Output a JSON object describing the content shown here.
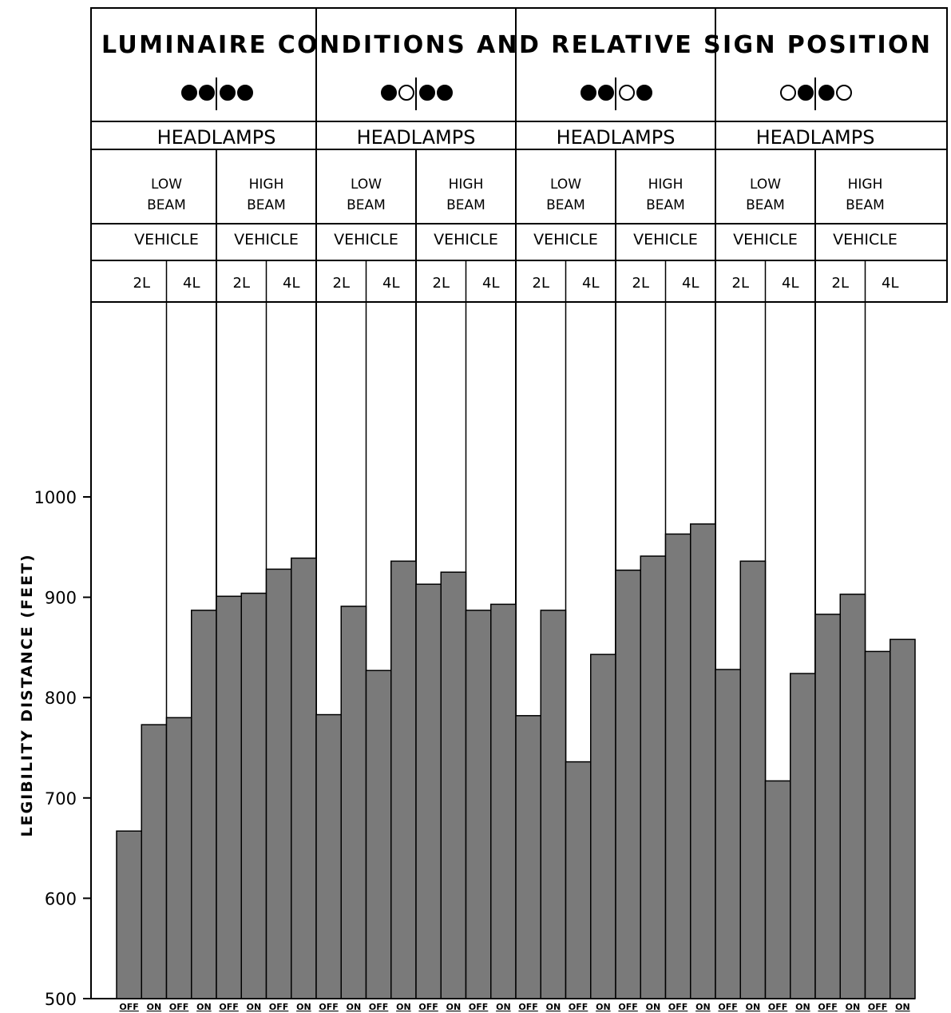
{
  "chart_data": {
    "type": "bar",
    "title": "LUMINAIRE CONDITIONS AND RELATIVE SIGN POSITION",
    "ylabel": "LEGIBILITY DISTANCE (FEET)",
    "xlabel": "",
    "ylim": [
      500,
      1100
    ],
    "yticks": [
      "500",
      "600",
      "700",
      "800",
      "900",
      "1000"
    ],
    "grid": false,
    "legend": "none",
    "bar_color": "#7a7a7a",
    "groups": [
      {
        "luminaire_condition": {
          "left": [
            "filled",
            "filled"
          ],
          "right": [
            "filled",
            "filled"
          ]
        },
        "headlamps_label": "HEADLAMPS",
        "beams": [
          {
            "line1": "LOW",
            "line2": "BEAM",
            "vehicle_label": "VEHICLE",
            "lanes": [
              "2L",
              "4L"
            ]
          },
          {
            "line1": "HIGH",
            "line2": "BEAM",
            "vehicle_label": "VEHICLE",
            "lanes": [
              "2L",
              "4L"
            ]
          }
        ]
      },
      {
        "luminaire_condition": {
          "left": [
            "filled",
            "open"
          ],
          "right": [
            "filled",
            "filled"
          ]
        },
        "headlamps_label": "HEADLAMPS",
        "beams": [
          {
            "line1": "LOW",
            "line2": "BEAM",
            "vehicle_label": "VEHICLE",
            "lanes": [
              "2L",
              "4L"
            ]
          },
          {
            "line1": "HIGH",
            "line2": "BEAM",
            "vehicle_label": "VEHICLE",
            "lanes": [
              "2L",
              "4L"
            ]
          }
        ]
      },
      {
        "luminaire_condition": {
          "left": [
            "filled",
            "filled"
          ],
          "right": [
            "open",
            "filled"
          ]
        },
        "headlamps_label": "HEADLAMPS",
        "beams": [
          {
            "line1": "LOW",
            "line2": "BEAM",
            "vehicle_label": "VEHICLE",
            "lanes": [
              "2L",
              "4L"
            ]
          },
          {
            "line1": "HIGH",
            "line2": "BEAM",
            "vehicle_label": "VEHICLE",
            "lanes": [
              "2L",
              "4L"
            ]
          }
        ]
      },
      {
        "luminaire_condition": {
          "left": [
            "open",
            "filled"
          ],
          "right": [
            "filled",
            "open"
          ]
        },
        "headlamps_label": "HEADLAMPS",
        "beams": [
          {
            "line1": "LOW",
            "line2": "BEAM",
            "vehicle_label": "VEHICLE",
            "lanes": [
              "2L",
              "4L"
            ]
          },
          {
            "line1": "HIGH",
            "line2": "BEAM",
            "vehicle_label": "VEHICLE",
            "lanes": [
              "2L",
              "4L"
            ]
          }
        ]
      }
    ],
    "categories": [
      "OFF",
      "ON",
      "OFF",
      "ON",
      "OFF",
      "ON",
      "OFF",
      "ON",
      "OFF",
      "ON",
      "OFF",
      "ON",
      "OFF",
      "ON",
      "OFF",
      "ON",
      "OFF",
      "ON",
      "OFF",
      "ON",
      "OFF",
      "ON",
      "OFF",
      "ON",
      "OFF",
      "ON",
      "OFF",
      "ON",
      "OFF",
      "ON",
      "OFF",
      "ON"
    ],
    "values": [
      667,
      773,
      780,
      887,
      901,
      904,
      928,
      939,
      783,
      891,
      827,
      936,
      913,
      925,
      887,
      893,
      782,
      887,
      736,
      843,
      927,
      941,
      963,
      973,
      828,
      936,
      717,
      824,
      883,
      903,
      846,
      858
    ]
  }
}
